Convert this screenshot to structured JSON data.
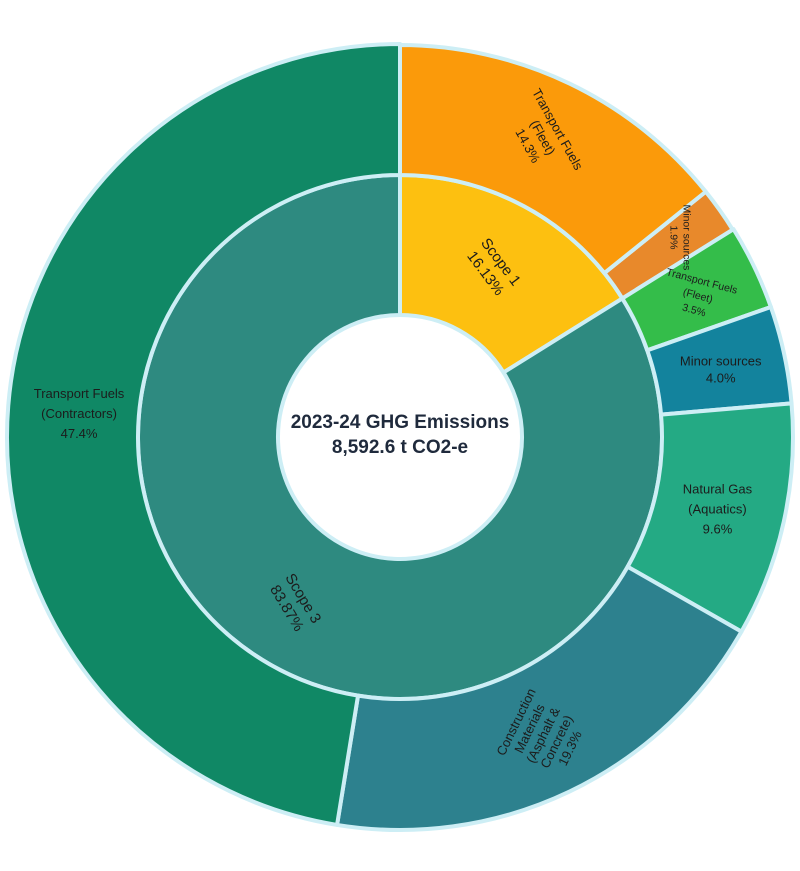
{
  "chart_data": {
    "type": "sunburst",
    "title": "2023-24 GHG Emissions",
    "subtitle": "8,592.6 t CO2-e",
    "inner": [
      {
        "name": "Scope 1",
        "label": "16.13%",
        "value": 16.13,
        "color": "#fdc010"
      },
      {
        "name": "Scope 3",
        "label": "83.87%",
        "value": 83.87,
        "color": "#2e8a80"
      }
    ],
    "outer": [
      {
        "parent": "Scope 1",
        "lines": [
          "Minor sources",
          "1.9%"
        ],
        "value": 1.9,
        "color": "#e8892b"
      },
      {
        "parent": "Scope 1",
        "lines": [
          "Transport Fuels",
          "(Fleet)",
          "14.3%"
        ],
        "value": 14.3,
        "color": "#fb9a0a"
      },
      {
        "parent": "Scope 3",
        "lines": [
          "Transport Fuels",
          "(Fleet)",
          "3.5%"
        ],
        "value": 3.5,
        "color": "#34bd4a"
      },
      {
        "parent": "Scope 3",
        "lines": [
          "Minor sources",
          "4.0%"
        ],
        "value": 4.0,
        "color": "#13839d"
      },
      {
        "parent": "Scope 3",
        "lines": [
          "Natural Gas",
          "(Aquatics)",
          "9.6%"
        ],
        "value": 9.6,
        "color": "#24aa84"
      },
      {
        "parent": "Scope 3",
        "lines": [
          "Construction",
          "Materials",
          "(Asphalt &",
          "Concrete)",
          "19.3%"
        ],
        "value": 19.3,
        "color": "#2d818e"
      },
      {
        "parent": "Scope 3",
        "lines": [
          "Transport Fuels",
          "(Contractors)",
          "47.4%"
        ],
        "value": 47.4,
        "color": "#108865"
      }
    ]
  }
}
